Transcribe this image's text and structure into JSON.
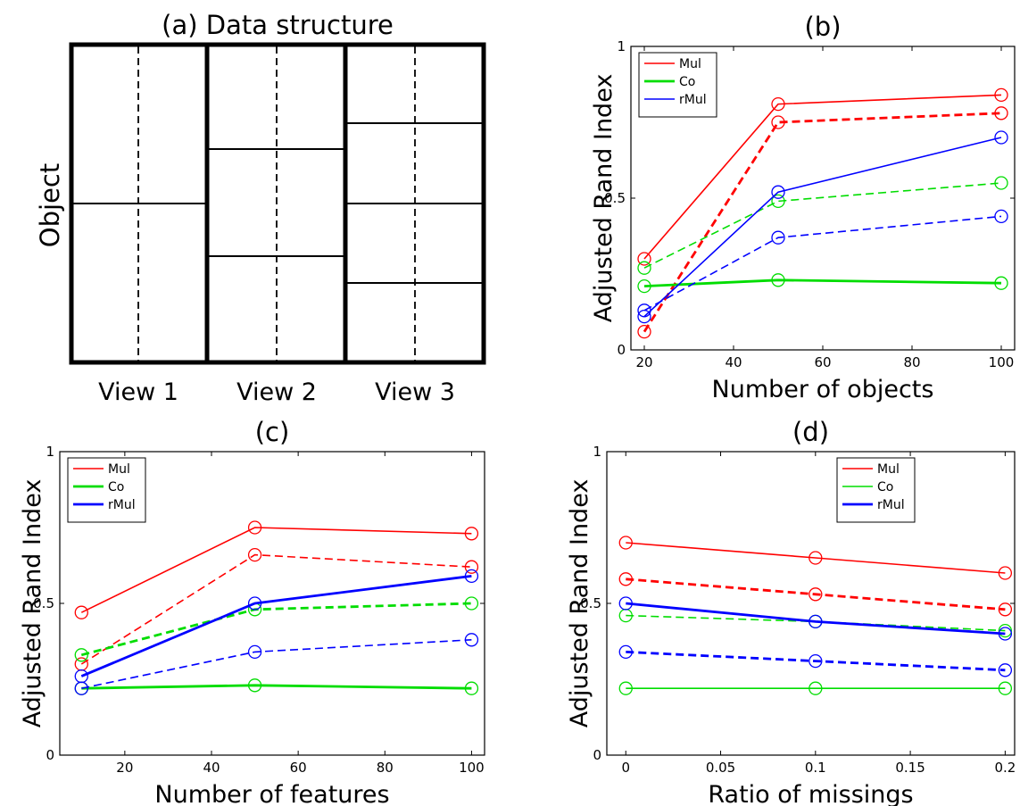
{
  "panel_a": {
    "title": "(a) Data structure",
    "ylabel": "Object",
    "views": [
      "View 1",
      "View 2",
      "View 3"
    ]
  },
  "chart_data": [
    {
      "id": "b",
      "type": "line",
      "title": "(b)",
      "xlabel": "Number of objects",
      "ylabel": "Adjusted Rand Index",
      "xlim": [
        17,
        103
      ],
      "ylim": [
        0,
        1
      ],
      "xticks": [
        20,
        40,
        60,
        80,
        100
      ],
      "yticks": [
        0,
        0.5,
        1
      ],
      "ytick_labels": [
        "0",
        "0.5",
        "1"
      ],
      "grid": false,
      "legend_position": "top-left",
      "x": [
        20,
        50,
        100
      ],
      "series": [
        {
          "name": "Mul",
          "color": "#ff0000",
          "dash": false,
          "bold": false,
          "values": [
            0.3,
            0.81,
            0.84
          ]
        },
        {
          "name": "",
          "color": "#ff0000",
          "dash": true,
          "bold": true,
          "values": [
            0.06,
            0.75,
            0.78
          ]
        },
        {
          "name": "Co",
          "color": "#00dd00",
          "dash": false,
          "bold": true,
          "values": [
            0.21,
            0.23,
            0.22
          ]
        },
        {
          "name": "",
          "color": "#00dd00",
          "dash": true,
          "bold": false,
          "values": [
            0.27,
            0.49,
            0.55
          ]
        },
        {
          "name": "rMul",
          "color": "#0000ff",
          "dash": false,
          "bold": false,
          "values": [
            0.11,
            0.52,
            0.7
          ]
        },
        {
          "name": "",
          "color": "#0000ff",
          "dash": true,
          "bold": false,
          "values": [
            0.13,
            0.37,
            0.44
          ]
        }
      ]
    },
    {
      "id": "c",
      "type": "line",
      "title": "(c)",
      "xlabel": "Number of features",
      "ylabel": "Adjusted Rand Index",
      "xlim": [
        5,
        103
      ],
      "ylim": [
        0,
        1
      ],
      "xticks": [
        20,
        40,
        60,
        80,
        100
      ],
      "yticks": [
        0,
        0.5,
        1
      ],
      "ytick_labels": [
        "0",
        "0.5",
        "1"
      ],
      "grid": false,
      "legend_position": "top-left",
      "x": [
        10,
        50,
        100
      ],
      "series": [
        {
          "name": "Mul",
          "color": "#ff0000",
          "dash": false,
          "bold": false,
          "values": [
            0.47,
            0.75,
            0.73
          ]
        },
        {
          "name": "",
          "color": "#ff0000",
          "dash": true,
          "bold": false,
          "values": [
            0.3,
            0.66,
            0.62
          ]
        },
        {
          "name": "Co",
          "color": "#00dd00",
          "dash": false,
          "bold": true,
          "values": [
            0.22,
            0.23,
            0.22
          ]
        },
        {
          "name": "",
          "color": "#00dd00",
          "dash": true,
          "bold": true,
          "values": [
            0.33,
            0.48,
            0.5
          ]
        },
        {
          "name": "rMul",
          "color": "#0000ff",
          "dash": false,
          "bold": true,
          "values": [
            0.26,
            0.5,
            0.59
          ]
        },
        {
          "name": "",
          "color": "#0000ff",
          "dash": true,
          "bold": false,
          "values": [
            0.22,
            0.34,
            0.38
          ]
        }
      ]
    },
    {
      "id": "d",
      "type": "line",
      "title": "(d)",
      "xlabel": "Ratio of missings",
      "ylabel": "Adjusted Rand Index",
      "xlim": [
        -0.01,
        0.205
      ],
      "ylim": [
        0,
        1
      ],
      "xticks": [
        0,
        0.05,
        0.1,
        0.15,
        0.2
      ],
      "xtick_labels": [
        "0",
        "0.05",
        "0.1",
        "0.15",
        "0.2"
      ],
      "yticks": [
        0,
        0.5,
        1
      ],
      "ytick_labels": [
        "0",
        "0.5",
        "1"
      ],
      "grid": false,
      "legend_position": "top-right",
      "x": [
        0,
        0.1,
        0.2
      ],
      "series": [
        {
          "name": "Mul",
          "color": "#ff0000",
          "dash": false,
          "bold": false,
          "values": [
            0.7,
            0.65,
            0.6
          ]
        },
        {
          "name": "",
          "color": "#ff0000",
          "dash": true,
          "bold": true,
          "values": [
            0.58,
            0.53,
            0.48
          ]
        },
        {
          "name": "Co",
          "color": "#00dd00",
          "dash": false,
          "bold": false,
          "values": [
            0.22,
            0.22,
            0.22
          ]
        },
        {
          "name": "",
          "color": "#00dd00",
          "dash": true,
          "bold": false,
          "values": [
            0.46,
            0.44,
            0.41
          ]
        },
        {
          "name": "rMul",
          "color": "#0000ff",
          "dash": false,
          "bold": true,
          "values": [
            0.5,
            0.44,
            0.4
          ]
        },
        {
          "name": "",
          "color": "#0000ff",
          "dash": true,
          "bold": true,
          "values": [
            0.34,
            0.31,
            0.28
          ]
        }
      ]
    }
  ]
}
